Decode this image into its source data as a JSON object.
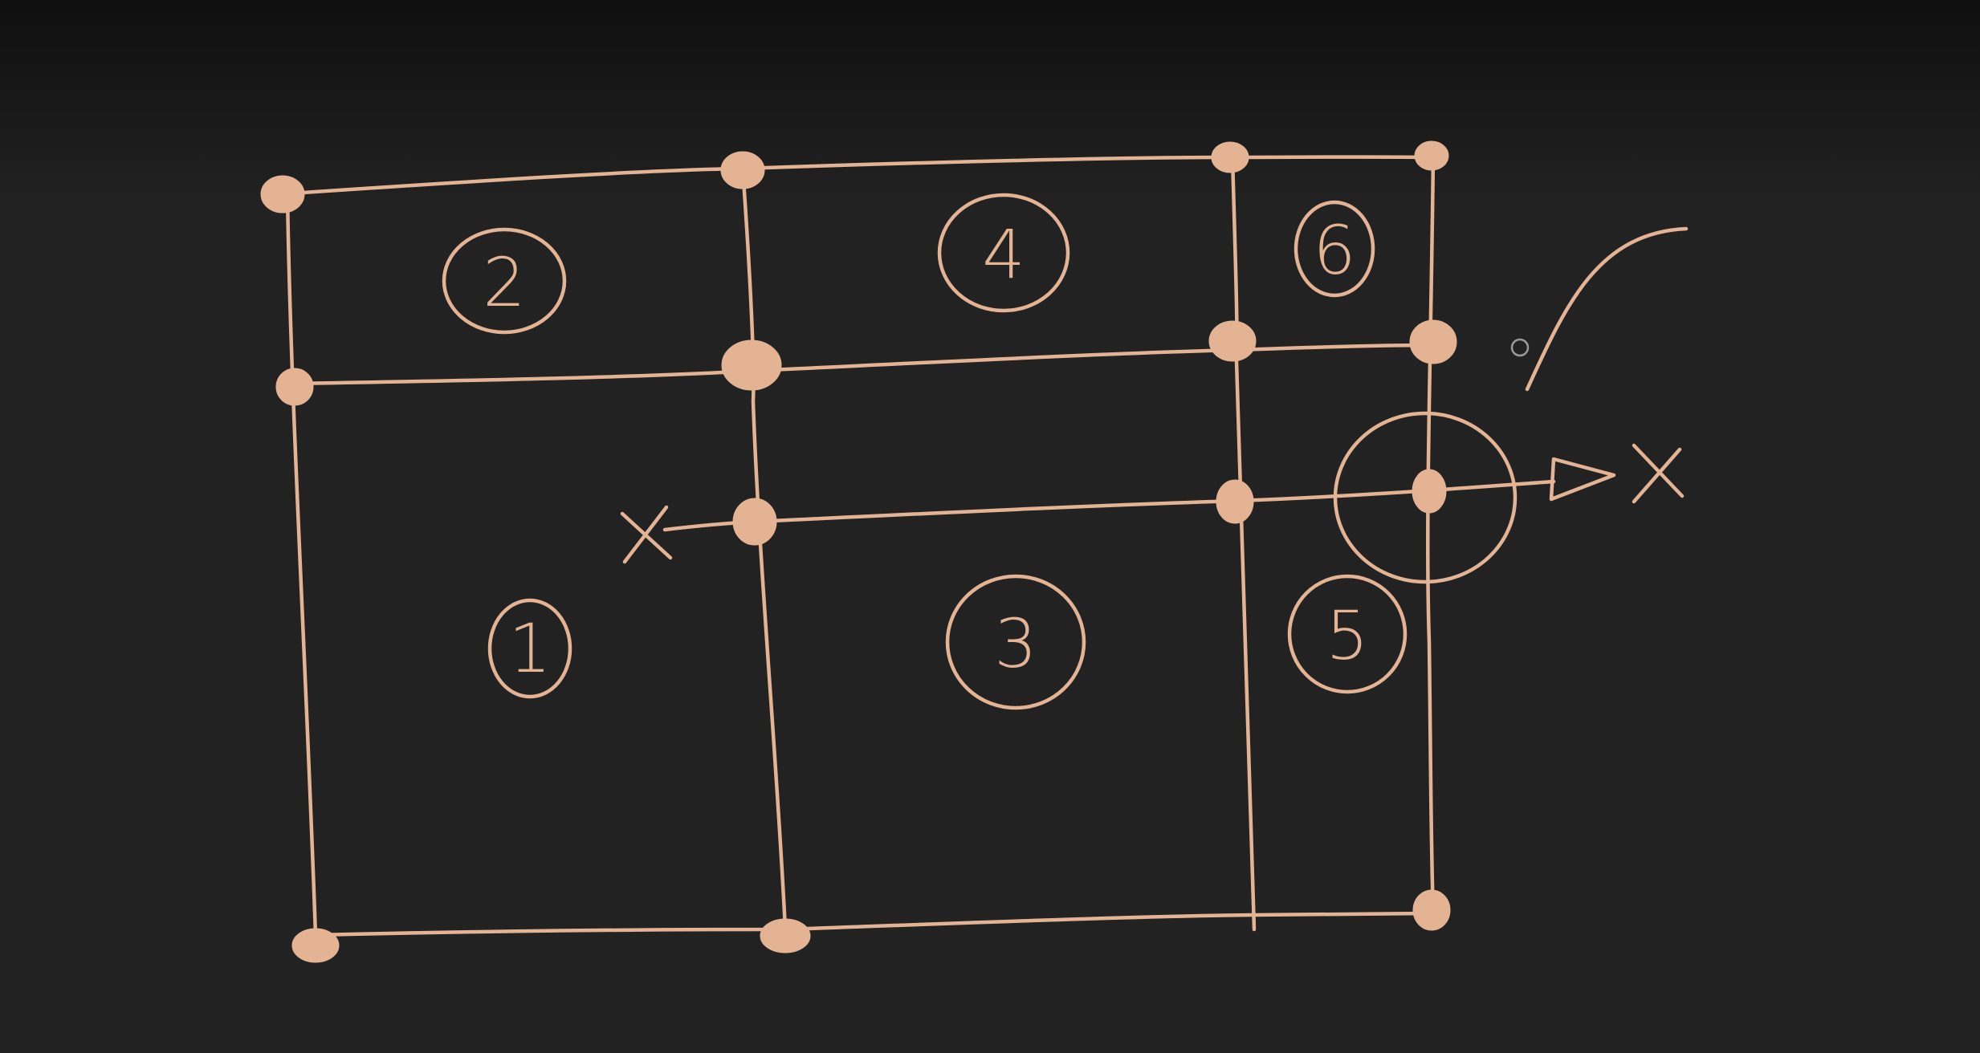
{
  "colors": {
    "background": "#222222",
    "ink": "#e3b394"
  },
  "regions": [
    {
      "label": "1"
    },
    {
      "label": "2"
    },
    {
      "label": "3"
    },
    {
      "label": "4"
    },
    {
      "label": "5"
    },
    {
      "label": "6"
    }
  ],
  "ray": {
    "start_marker": "x-mark",
    "end_marker": "x-mark",
    "arrow": "arrowhead-icon"
  },
  "cursor": "pen-cursor-icon"
}
